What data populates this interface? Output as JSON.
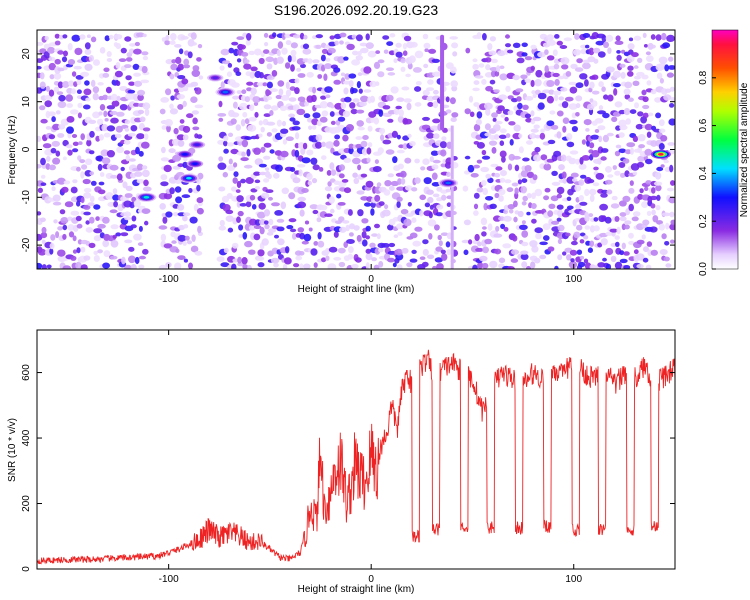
{
  "title": "S196.2026.092.20.19.G23",
  "colors": {
    "snr_line": "#ee2222",
    "axis": "#000000"
  },
  "chart_data": [
    {
      "type": "heatmap",
      "xlabel": "Height of straight line (km)",
      "ylabel": "Frequency (Hz)",
      "xlim": [
        -165,
        150
      ],
      "ylim": [
        -25,
        25
      ],
      "xticks": [
        -100,
        0,
        100
      ],
      "yticks": [
        -20,
        -10,
        0,
        10,
        20
      ],
      "xtick_labels": [
        "-100",
        "0",
        "100"
      ],
      "ytick_labels": [
        "-20",
        "-10",
        "0",
        "10",
        "20"
      ],
      "grid": false,
      "colorbar": {
        "label": "Normalized spectral amplitude",
        "range": [
          0,
          1
        ],
        "ticks": [
          0.0,
          0.2,
          0.4,
          0.6,
          0.8
        ],
        "tick_labels": [
          "0.0",
          "0.2",
          "0.4",
          "0.6",
          "0.8"
        ],
        "colormap": "rainbow (white-violet-blue-cyan-green-yellow-red-magenta)"
      },
      "notable_peaks": [
        {
          "x": -111,
          "y": -10,
          "amplitude": 0.45
        },
        {
          "x": -90,
          "y": -6,
          "amplitude": 0.42
        },
        {
          "x": -87,
          "y": -3,
          "amplitude": 0.3
        },
        {
          "x": -92,
          "y": -1,
          "amplitude": 0.3
        },
        {
          "x": -86,
          "y": 1,
          "amplitude": 0.25
        },
        {
          "x": -72,
          "y": 12,
          "amplitude": 0.35
        },
        {
          "x": -77,
          "y": 15,
          "amplitude": 0.22
        },
        {
          "x": 38,
          "y": -7,
          "amplitude": 0.35
        },
        {
          "x": 143,
          "y": -1,
          "amplitude": 0.95
        }
      ]
    },
    {
      "type": "line",
      "xlabel": "Height of straight line (km)",
      "ylabel": "SNR (10 * v/v)",
      "xlim": [
        -165,
        150
      ],
      "ylim": [
        0,
        730
      ],
      "xticks": [
        -100,
        0,
        100
      ],
      "yticks": [
        0,
        200,
        400,
        600
      ],
      "xtick_labels": [
        "-100",
        "0",
        "100"
      ],
      "ytick_labels": [
        "0",
        "200",
        "400",
        "600"
      ],
      "grid": false,
      "series": [
        {
          "name": "SNR",
          "x": [
            -165,
            -150,
            -135,
            -120,
            -105,
            -95,
            -85,
            -80,
            -75,
            -70,
            -65,
            -60,
            -55,
            -50,
            -45,
            -40,
            -35,
            -32,
            -30,
            -27,
            -25,
            -23,
            -20,
            -18,
            -15,
            -12,
            -10,
            -8,
            -5,
            -3,
            0,
            3,
            5,
            8,
            10,
            13,
            15,
            18,
            20,
            22,
            25,
            28,
            30,
            35,
            40,
            45,
            50,
            55,
            60,
            65,
            70,
            75,
            80,
            85,
            90,
            95,
            100,
            105,
            110,
            115,
            120,
            125,
            130,
            135,
            140,
            145,
            150
          ],
          "values": [
            25,
            28,
            30,
            35,
            40,
            60,
            90,
            120,
            95,
            110,
            100,
            80,
            85,
            60,
            35,
            30,
            50,
            110,
            200,
            150,
            350,
            180,
            230,
            300,
            330,
            200,
            250,
            320,
            280,
            260,
            350,
            300,
            380,
            420,
            500,
            430,
            540,
            600,
            560,
            610,
            620,
            640,
            600,
            610,
            630,
            600,
            580,
            480,
            560,
            600,
            580,
            560,
            600,
            580,
            610,
            590,
            650,
            600,
            580,
            620,
            560,
            600,
            580,
            620,
            570,
            590,
            610
          ]
        }
      ],
      "dropouts": [
        {
          "x": 22,
          "value": 100
        },
        {
          "x": 32,
          "value": 120
        },
        {
          "x": 46,
          "value": 130
        },
        {
          "x": 59,
          "value": 125
        },
        {
          "x": 73,
          "value": 125
        },
        {
          "x": 87,
          "value": 130
        },
        {
          "x": 101,
          "value": 120
        },
        {
          "x": 114,
          "value": 120
        },
        {
          "x": 128,
          "value": 115
        },
        {
          "x": 140,
          "value": 130
        }
      ]
    }
  ]
}
